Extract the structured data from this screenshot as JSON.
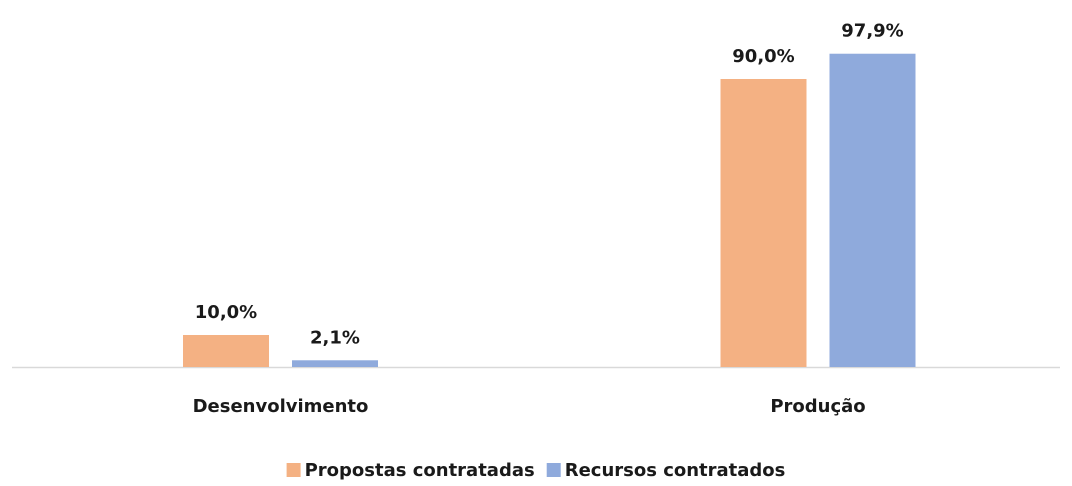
{
  "chart_data": {
    "type": "bar",
    "categories": [
      "Desenvolvimento",
      "Produção"
    ],
    "series": [
      {
        "name": "Propostas contratadas",
        "color": "#f4b183",
        "values": [
          10.0,
          90.0
        ],
        "value_labels": [
          "10,0%",
          "90,0%"
        ]
      },
      {
        "name": "Recursos contratados",
        "color": "#8faadc",
        "values": [
          2.1,
          97.9
        ],
        "value_labels": [
          "2,1%",
          "97,9%"
        ]
      }
    ],
    "legend": "bottom"
  }
}
